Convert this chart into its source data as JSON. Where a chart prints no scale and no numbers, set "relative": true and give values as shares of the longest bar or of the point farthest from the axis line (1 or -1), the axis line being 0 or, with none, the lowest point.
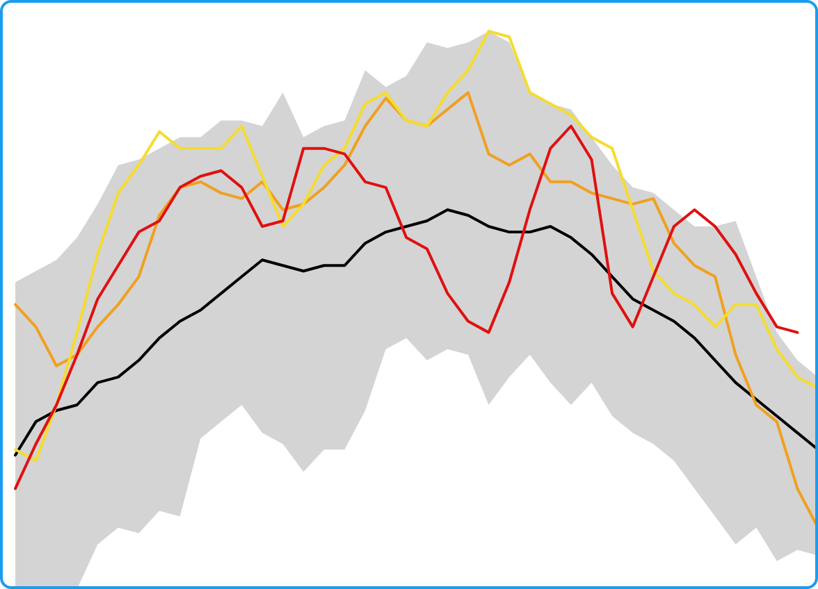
{
  "chart_data": {
    "type": "line",
    "relative": true,
    "categories": [
      null,
      null,
      null,
      null,
      null,
      null,
      null,
      null,
      null,
      null,
      null,
      null,
      null,
      null,
      null,
      null,
      null,
      null,
      null,
      null,
      null,
      null,
      null,
      null,
      null,
      null,
      null,
      null,
      null,
      null,
      null,
      null,
      null,
      null,
      null,
      null,
      null,
      null,
      null,
      null
    ],
    "series": [
      {
        "color": "#000000",
        "values": [
          0.24,
          0.3,
          0.32,
          0.33,
          0.37,
          0.38,
          0.41,
          0.45,
          0.48,
          0.5,
          0.53,
          0.56,
          0.59,
          0.58,
          0.57,
          0.58,
          0.58,
          0.62,
          0.64,
          0.65,
          0.66,
          0.68,
          0.67,
          0.65,
          0.64,
          0.64,
          0.65,
          0.63,
          0.6,
          0.56,
          0.52,
          0.5,
          0.48,
          0.45,
          0.41,
          0.37,
          0.34,
          0.31,
          0.28,
          0.25
        ],
        "upper": [
          0.55,
          0.57,
          0.59,
          0.63,
          0.69,
          0.76,
          0.77,
          0.79,
          0.81,
          0.81,
          0.84,
          0.84,
          0.83,
          0.89,
          0.81,
          0.83,
          0.84,
          0.93,
          0.9,
          0.92,
          0.98,
          0.97,
          0.98,
          1,
          0.98,
          0.89,
          0.87,
          0.86,
          0.81,
          0.76,
          0.72,
          0.71,
          0.68,
          0.65,
          0.65,
          0.66,
          0.56,
          0.46,
          0.41,
          0.38
        ],
        "lower": [
          0,
          0,
          0,
          0,
          0.08,
          0.11,
          0.1,
          0.14,
          0.13,
          0.27,
          0.3,
          0.33,
          0.28,
          0.26,
          0.21,
          0.25,
          0.25,
          0.32,
          0.43,
          0.45,
          0.41,
          0.43,
          0.42,
          0.33,
          0.38,
          0.42,
          0.37,
          0.33,
          0.37,
          0.31,
          0.28,
          0.26,
          0.23,
          0.18,
          0.13,
          0.08,
          0.11,
          0.05,
          0.07,
          0.06
        ]
      },
      {
        "color": "#f0a020",
        "values": [
          0.51,
          0.47,
          0.4,
          0.42,
          0.47,
          0.51,
          0.56,
          0.67,
          0.72,
          0.73,
          0.71,
          0.7,
          0.73,
          0.68,
          0.69,
          0.72,
          0.76,
          0.83,
          0.88,
          0.84,
          0.83,
          0.86,
          0.89,
          0.78,
          0.76,
          0.78,
          0.73,
          0.73,
          0.71,
          0.7,
          0.69,
          0.7,
          0.62,
          0.58,
          0.56,
          0.42,
          0.33,
          0.3,
          0.18,
          0.11
        ]
      },
      {
        "color": "#f5dc30",
        "values": [
          0.25,
          0.23,
          0.33,
          0.46,
          0.6,
          0.71,
          0.76,
          0.82,
          0.79,
          0.79,
          0.79,
          0.83,
          0.74,
          0.65,
          0.69,
          0.76,
          0.79,
          0.87,
          0.89,
          0.84,
          0.83,
          0.89,
          0.93,
          1,
          0.99,
          0.89,
          0.87,
          0.85,
          0.81,
          0.79,
          0.68,
          0.57,
          0.53,
          0.51,
          0.47,
          0.51,
          0.51,
          0.43,
          0.38,
          0.36
        ]
      },
      {
        "color": "#e01010",
        "values": [
          0.18,
          0.26,
          0.33,
          0.42,
          0.52,
          0.58,
          0.64,
          0.66,
          0.72,
          0.74,
          0.75,
          0.72,
          0.65,
          0.66,
          0.79,
          0.79,
          0.78,
          0.73,
          0.72,
          0.63,
          0.61,
          0.53,
          0.48,
          0.46,
          0.55,
          0.68,
          0.79,
          0.83,
          0.77,
          0.53,
          0.47,
          0.56,
          0.65,
          0.68,
          0.65,
          0.6,
          0.53,
          0.47,
          0.46,
          null
        ]
      }
    ]
  }
}
